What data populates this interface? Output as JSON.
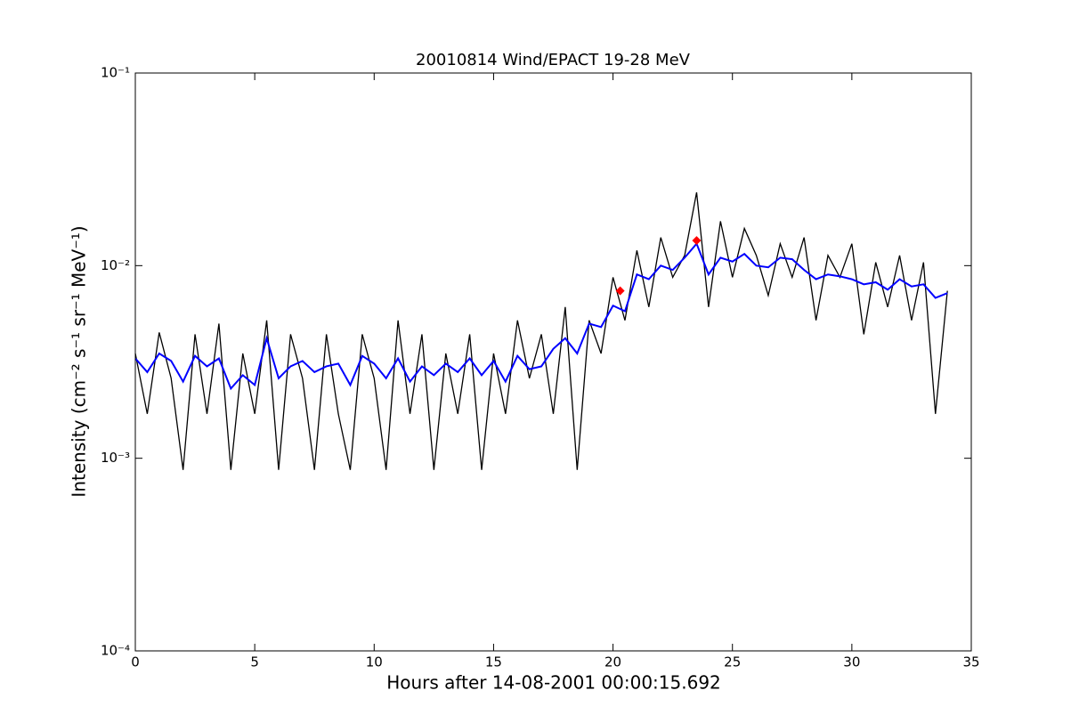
{
  "chart_data": {
    "type": "line",
    "title": "20010814 Wind/EPACT 19-28 MeV",
    "xlabel": "Hours after 14-08-2001 00:00:15.692",
    "ylabel": "Intensity (cm⁻² s⁻¹ sr⁻¹ MeV⁻¹)",
    "log_y": true,
    "xlim": [
      0,
      35
    ],
    "xticks": [
      0,
      5,
      10,
      15,
      20,
      25,
      30,
      35
    ],
    "ylim": [
      0.0001,
      0.1
    ],
    "yticks": [
      {
        "value": 0.0001,
        "label": "10⁻⁴"
      },
      {
        "value": 0.001,
        "label": "10⁻³"
      },
      {
        "value": 0.01,
        "label": "10⁻²"
      },
      {
        "value": 0.1,
        "label": "10⁻¹"
      }
    ],
    "x": [
      0,
      0.5,
      1,
      1.5,
      2,
      2.5,
      3,
      3.5,
      4,
      4.5,
      5,
      5.5,
      6,
      6.5,
      7,
      7.5,
      8,
      8.5,
      9,
      9.5,
      10,
      10.5,
      11,
      11.5,
      12,
      12.5,
      13,
      13.5,
      14,
      14.5,
      15,
      15.5,
      16,
      16.5,
      17,
      17.5,
      18,
      18.5,
      19,
      19.5,
      20,
      20.5,
      21,
      21.5,
      22,
      22.5,
      23,
      23.5,
      24,
      24.5,
      25,
      25.5,
      26,
      26.5,
      27,
      27.5,
      28,
      28.5,
      29,
      29.5,
      30,
      30.5,
      31,
      31.5,
      32,
      32.5,
      33,
      33.5,
      34
    ],
    "series": [
      {
        "color": "#000000",
        "values": [
          0.0035,
          0.0017,
          0.0045,
          0.0026,
          0.00087,
          0.0044,
          0.0017,
          0.005,
          0.00087,
          0.0035,
          0.0017,
          0.0052,
          0.00087,
          0.0044,
          0.0026,
          0.00087,
          0.0044,
          0.0017,
          0.00087,
          0.0044,
          0.0026,
          0.00087,
          0.0052,
          0.0017,
          0.0044,
          0.00087,
          0.0035,
          0.0017,
          0.0044,
          0.00087,
          0.0035,
          0.0017,
          0.0052,
          0.0026,
          0.0044,
          0.0017,
          0.0061,
          0.00087,
          0.0052,
          0.0035,
          0.0087,
          0.0052,
          0.012,
          0.0061,
          0.014,
          0.0087,
          0.0113,
          0.024,
          0.0061,
          0.017,
          0.0087,
          0.0156,
          0.0113,
          0.007,
          0.013,
          0.0087,
          0.014,
          0.0052,
          0.0113,
          0.0087,
          0.013,
          0.0044,
          0.0104,
          0.0061,
          0.0113,
          0.0052,
          0.0104,
          0.0017,
          0.0074
        ]
      },
      {
        "color": "#0000ff",
        "values": [
          0.0033,
          0.0028,
          0.0035,
          0.0032,
          0.0025,
          0.0034,
          0.003,
          0.0033,
          0.0023,
          0.0027,
          0.0024,
          0.0042,
          0.0026,
          0.003,
          0.0032,
          0.0028,
          0.003,
          0.0031,
          0.0024,
          0.0034,
          0.0031,
          0.0026,
          0.0033,
          0.0025,
          0.003,
          0.0027,
          0.0031,
          0.0028,
          0.0033,
          0.0027,
          0.0032,
          0.0025,
          0.0034,
          0.0029,
          0.003,
          0.0037,
          0.0042,
          0.0035,
          0.005,
          0.0048,
          0.0062,
          0.0058,
          0.009,
          0.0085,
          0.01,
          0.0095,
          0.011,
          0.013,
          0.009,
          0.011,
          0.0105,
          0.0115,
          0.01,
          0.0098,
          0.011,
          0.0108,
          0.0095,
          0.0085,
          0.009,
          0.0088,
          0.0085,
          0.008,
          0.0082,
          0.0075,
          0.0085,
          0.0078,
          0.008,
          0.0068,
          0.0072
        ]
      }
    ],
    "points": {
      "color": "#ff0000",
      "x": [
        20.3,
        23.5
      ],
      "values": [
        0.0074,
        0.0135
      ]
    }
  }
}
